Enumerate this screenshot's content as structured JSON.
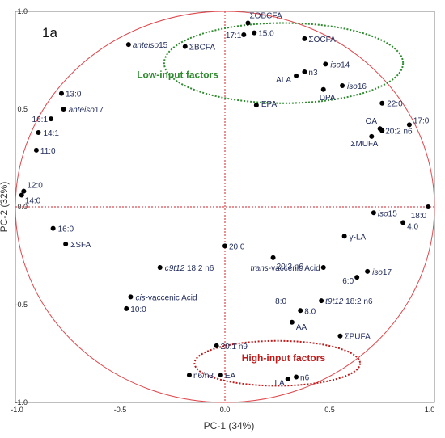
{
  "chart_data": {
    "type": "scatter",
    "panel_label": "1a",
    "xlabel": "PC-1 (34%)",
    "ylabel": "PC-2 (32%)",
    "xlim": [
      -1.0,
      1.0
    ],
    "ylim": [
      -1.0,
      1.0
    ],
    "x_ticks": [
      "-1.0",
      "-0.5",
      "0.0",
      "0.5",
      "1.0"
    ],
    "y_ticks": [
      "1.0",
      "0.5",
      "0.0",
      "-0.5",
      "-1.0"
    ],
    "unit_circle": true,
    "reference_lines": "dotted at x=0 and y=0",
    "groups": [
      {
        "label": "Low-input factors",
        "color": "#2e8b2e",
        "cx": 0.28,
        "cy": 0.735,
        "rx": 0.57,
        "ry": 0.205
      },
      {
        "label": "High-input factors",
        "color": "#c0191a",
        "cx": 0.25,
        "cy": -0.8,
        "rx": 0.395,
        "ry": 0.115
      }
    ],
    "points": [
      {
        "label": "ΣOBCFA",
        "x": 0.11,
        "y": 0.94
      },
      {
        "label": "17:1",
        "x": 0.09,
        "y": 0.88
      },
      {
        "label": "15:0",
        "x": 0.14,
        "y": 0.89
      },
      {
        "label": "ΣOCFA",
        "x": 0.38,
        "y": 0.86
      },
      {
        "label": "anteiso15",
        "italic": "anteiso",
        "rest": "15",
        "x": -0.46,
        "y": 0.83
      },
      {
        "label": "ΣBCFA",
        "x": -0.19,
        "y": 0.82
      },
      {
        "label": "iso14",
        "italic": "iso",
        "rest": "14",
        "x": 0.48,
        "y": 0.73
      },
      {
        "label": "n3",
        "x": 0.38,
        "y": 0.69
      },
      {
        "label": "ALA",
        "x": 0.34,
        "y": 0.67
      },
      {
        "label": "iso16",
        "italic": "iso",
        "rest": "16",
        "x": 0.56,
        "y": 0.62
      },
      {
        "label": "DPA",
        "x": 0.47,
        "y": 0.6
      },
      {
        "label": "EPA",
        "x": 0.15,
        "y": 0.52
      },
      {
        "label": "22:0",
        "x": 0.75,
        "y": 0.53
      },
      {
        "label": "OA",
        "x": 0.74,
        "y": 0.4
      },
      {
        "label": "20:2 n6",
        "x": 0.75,
        "y": 0.39
      },
      {
        "label": "17:0",
        "x": 0.88,
        "y": 0.42
      },
      {
        "label": "ΣMUFA",
        "x": 0.7,
        "y": 0.36
      },
      {
        "label": "13:0",
        "x": -0.78,
        "y": 0.58
      },
      {
        "label": "anteiso17",
        "italic": "anteiso",
        "rest": "17",
        "x": -0.77,
        "y": 0.5
      },
      {
        "label": "16:1",
        "x": -0.83,
        "y": 0.45
      },
      {
        "label": "14:1",
        "x": -0.89,
        "y": 0.38
      },
      {
        "label": "11:0",
        "x": -0.9,
        "y": 0.29
      },
      {
        "label": "12:0",
        "x": -0.96,
        "y": 0.08
      },
      {
        "label": "14:0",
        "x": -0.97,
        "y": 0.06
      },
      {
        "label": "16:0",
        "x": -0.82,
        "y": -0.11
      },
      {
        "label": "ΣSFA",
        "x": -0.76,
        "y": -0.19
      },
      {
        "label": "18:0",
        "x": 0.97,
        "y": 0.0
      },
      {
        "label": "iso15",
        "italic": "iso",
        "rest": "15",
        "x": 0.71,
        "y": -0.03
      },
      {
        "label": "4:0",
        "x": 0.85,
        "y": -0.08
      },
      {
        "label": "γ-LA",
        "x": 0.57,
        "y": -0.15
      },
      {
        "label": "20:0",
        "x": 0.0,
        "y": -0.2
      },
      {
        "label": "20:3 n6",
        "x": 0.23,
        "y": -0.26
      },
      {
        "label": "trans-vaccenic Acid",
        "italic": "trans",
        "rest": "-vaccenic Acid",
        "x": 0.47,
        "y": -0.31
      },
      {
        "label": "c9t12 18:2 n6",
        "italic": "c9t12",
        "rest": " 18:2 n6",
        "x": -0.31,
        "y": -0.31
      },
      {
        "label": "iso17",
        "italic": "iso",
        "rest": "17",
        "x": 0.68,
        "y": -0.33
      },
      {
        "label": "6:0",
        "x": 0.63,
        "y": -0.36
      },
      {
        "label": "cis-vaccenic Acid",
        "italic": "cis",
        "rest": "-vaccenic Acid",
        "x": -0.45,
        "y": -0.46
      },
      {
        "label": "10:0",
        "x": -0.47,
        "y": -0.52
      },
      {
        "label": "t9t12 18:2 n6",
        "italic": "t9t12",
        "rest": " 18:2 n6",
        "x": 0.46,
        "y": -0.48
      },
      {
        "label": "8:0",
        "x": 0.36,
        "y": -0.53
      },
      {
        "label": "AA",
        "x": 0.32,
        "y": -0.59
      },
      {
        "label": "ΣPUFA",
        "x": 0.55,
        "y": -0.66
      },
      {
        "label": "20:1 n9",
        "x": -0.04,
        "y": -0.71
      },
      {
        "label": "n6/n3",
        "x": -0.17,
        "y": -0.86
      },
      {
        "label": "EA",
        "x": -0.02,
        "y": -0.86
      },
      {
        "label": "n6",
        "x": 0.34,
        "y": -0.87
      },
      {
        "label": "LA",
        "x": 0.3,
        "y": -0.88
      }
    ]
  },
  "standalone_labels": [
    {
      "text": "8:0",
      "x": 0.24,
      "y": -0.48
    }
  ]
}
